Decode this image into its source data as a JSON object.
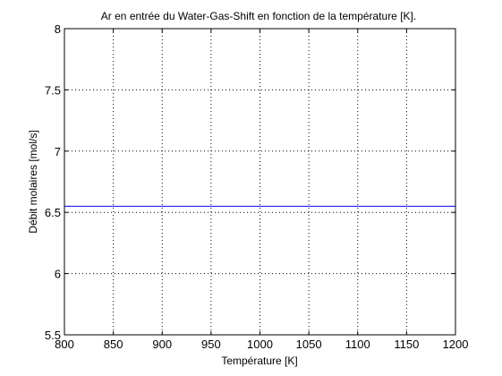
{
  "chart_data": {
    "type": "line",
    "title": "Ar en entrée du Water-Gas-Shift en fonction de la température [K].",
    "xlabel": "Température [K]",
    "ylabel": "Débit molaires [mol/s]",
    "xlim": [
      800,
      1200
    ],
    "ylim": [
      5.5,
      8
    ],
    "grid": true,
    "xticks": [
      800,
      850,
      900,
      950,
      1000,
      1050,
      1100,
      1150,
      1200
    ],
    "yticks": [
      5.5,
      6,
      6.5,
      7,
      7.5,
      8
    ],
    "xtick_labels": [
      "800",
      "850",
      "900",
      "950",
      "1000",
      "1050",
      "1100",
      "1150",
      "1200"
    ],
    "ytick_labels": [
      "5.5",
      "6",
      "6.5",
      "7",
      "7.5",
      "8"
    ],
    "series": [
      {
        "color": "#0000ff",
        "x": [
          800,
          1200
        ],
        "y": [
          6.55,
          6.55
        ]
      }
    ]
  }
}
